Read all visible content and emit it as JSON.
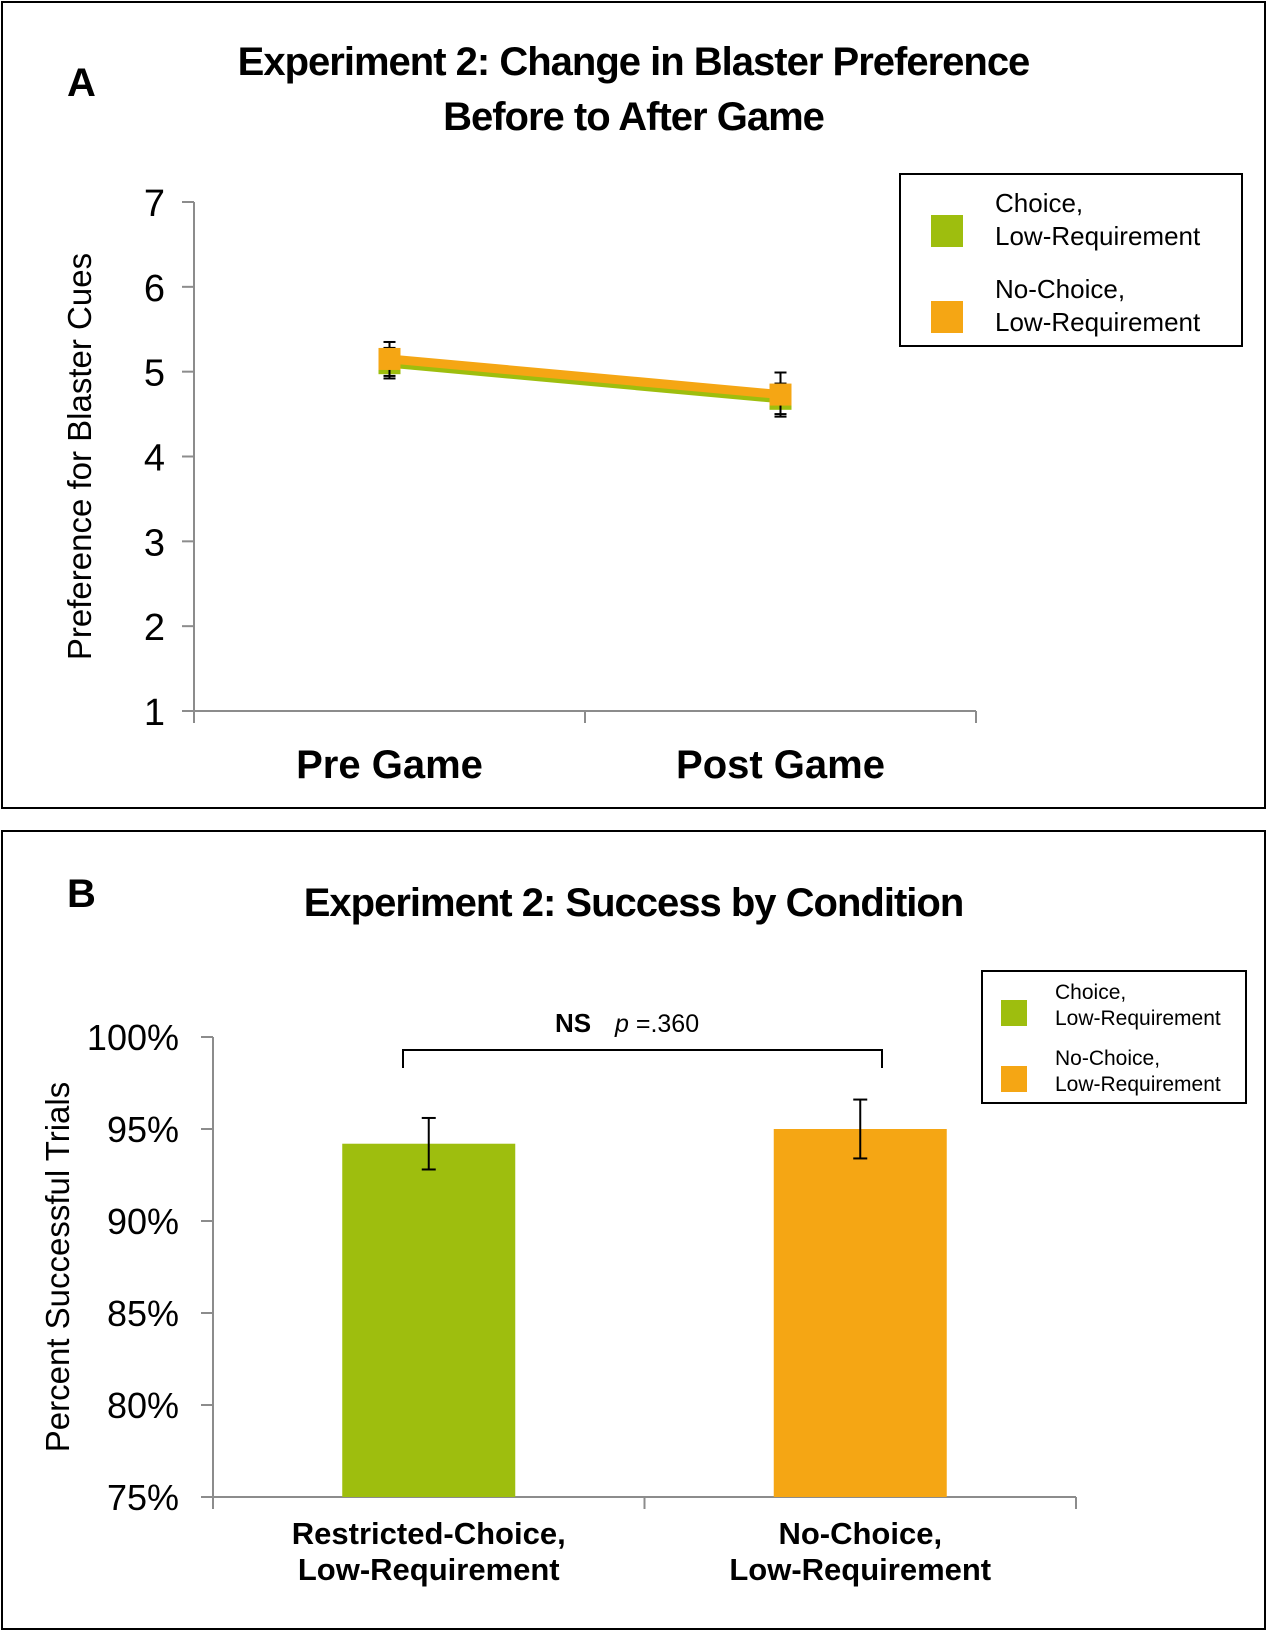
{
  "panel_a": {
    "letter": "A",
    "chart_data": {
      "type": "line",
      "title": [
        "Experiment 2: Change in Blaster Preference",
        "Before to After Game"
      ],
      "xlabel": "",
      "ylabel": "Preference for Blaster Cues",
      "categories": [
        "Pre Game",
        "Post Game"
      ],
      "ylim": [
        1,
        7
      ],
      "yticks": [
        "1",
        "2",
        "3",
        "4",
        "5",
        "6",
        "7"
      ],
      "series": [
        {
          "name": "Choice, Low-Requirement",
          "legend_lines": [
            "Choice,",
            "Low-Requirement"
          ],
          "color": "#9ebe0e",
          "values": [
            5.1,
            4.68
          ],
          "error": [
            0.18,
            0.18
          ]
        },
        {
          "name": "No-Choice, Low-Requirement",
          "legend_lines": [
            "No-Choice,",
            "Low-Requirement"
          ],
          "color": "#f5a614",
          "values": [
            5.15,
            4.73
          ],
          "error": [
            0.2,
            0.26
          ]
        }
      ],
      "legend_position": "top-right"
    }
  },
  "panel_b": {
    "letter": "B",
    "chart_data": {
      "type": "bar",
      "title": "Experiment 2: Success by Condition",
      "xlabel": "",
      "ylabel": "Percent Successful Trials",
      "categories": [
        [
          "Restricted-Choice,",
          "Low-Requirement"
        ],
        [
          "No-Choice,",
          "Low-Requirement"
        ]
      ],
      "ylim": [
        75,
        100
      ],
      "yticks": [
        "75%",
        "80%",
        "85%",
        "90%",
        "95%",
        "100%"
      ],
      "series": [
        {
          "name": "Choice, Low-Requirement",
          "legend_lines": [
            "Choice,",
            "Low-Requirement"
          ],
          "color": "#9ebe0e",
          "value": 94.2,
          "error": 1.4
        },
        {
          "name": "No-Choice, Low-Requirement",
          "legend_lines": [
            "No-Choice,",
            "Low-Requirement"
          ],
          "color": "#f5a614",
          "value": 95.0,
          "error": 1.6
        }
      ],
      "annotation": {
        "label": "NS",
        "p_symbol": "p",
        "p_value": " =.360"
      },
      "legend_position": "top-right"
    }
  }
}
